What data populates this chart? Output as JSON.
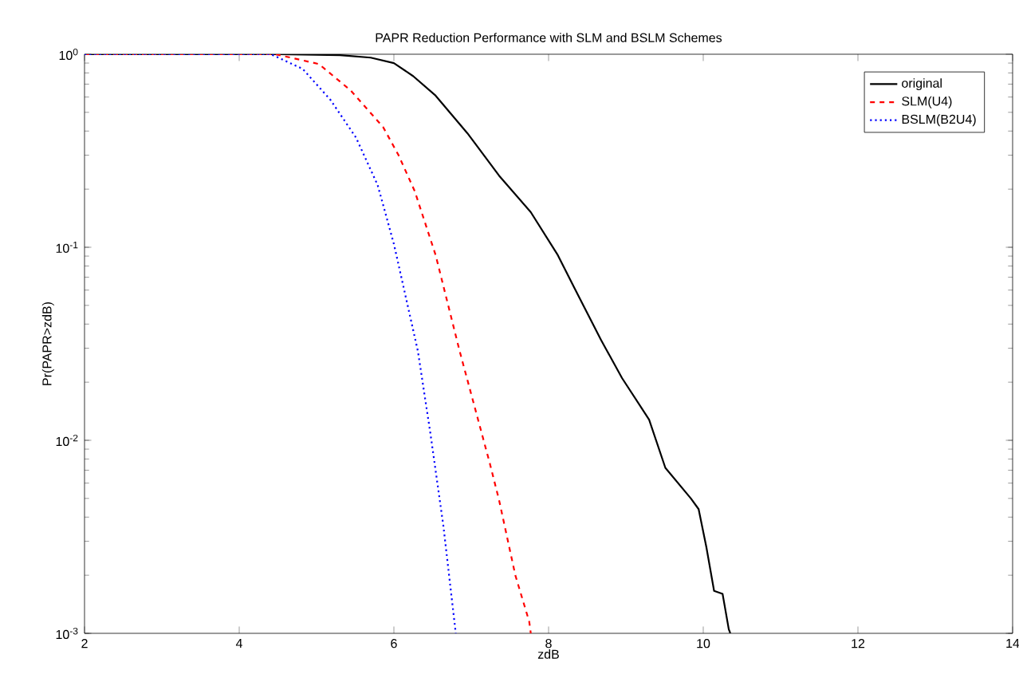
{
  "chart_data": {
    "type": "line",
    "title": "PAPR Reduction Performance with SLM and BSLM Schemes",
    "xlabel": "zdB",
    "ylabel": "Pr(PAPR>zdB)",
    "log": "y",
    "grid": false,
    "legend": "top right",
    "xlim": [
      2,
      14
    ],
    "ylim": [
      0.001,
      1
    ],
    "xticks": [
      2,
      4,
      6,
      8,
      10,
      12,
      14
    ],
    "yticks": [
      {
        "value": 0.001,
        "label": "10$^{-3}$"
      },
      {
        "value": 0.01,
        "label": "10$^{-2}$"
      },
      {
        "value": 0.1,
        "label": "10$^{-1}$"
      },
      {
        "value": 1,
        "label": "10$^{0}$"
      }
    ],
    "series": [
      {
        "name": "original",
        "color": "#000000",
        "line_style": "solid",
        "x": [
          2,
          4.5,
          5.3,
          5.7,
          6,
          6.25,
          6.54,
          6.95,
          7.36,
          7.77,
          8.12,
          8.33,
          8.68,
          8.95,
          9.3,
          9.51,
          9.84,
          9.94,
          10.04,
          10.14,
          10.25,
          10.33,
          10.35
        ],
        "values": [
          1,
          1,
          0.99,
          0.96,
          0.9,
          0.77,
          0.61,
          0.39,
          0.235,
          0.152,
          0.091,
          0.062,
          0.033,
          0.021,
          0.0128,
          0.0072,
          0.005,
          0.0044,
          0.0028,
          0.00166,
          0.0016,
          0.00105,
          0.001
        ]
      },
      {
        "name": "SLM(U4)",
        "color": "#ff0000",
        "line_style": "dashed",
        "x": [
          2,
          4.47,
          5.03,
          5.44,
          5.86,
          6.06,
          6.27,
          6.54,
          6.85,
          7.24,
          7.36,
          7.57,
          7.75,
          7.77
        ],
        "values": [
          1,
          1,
          0.89,
          0.65,
          0.42,
          0.3,
          0.195,
          0.091,
          0.029,
          0.0076,
          0.0049,
          0.002,
          0.00115,
          0.001
        ]
      },
      {
        "name": "BSLM(B2U4)",
        "color": "#0000ff",
        "line_style": "dotted",
        "x": [
          2,
          4.41,
          4.82,
          5.18,
          5.51,
          5.79,
          6,
          6.31,
          6.47,
          6.64,
          6.8
        ],
        "values": [
          1,
          1,
          0.84,
          0.58,
          0.37,
          0.21,
          0.104,
          0.029,
          0.011,
          0.0036,
          0.001
        ]
      }
    ]
  }
}
